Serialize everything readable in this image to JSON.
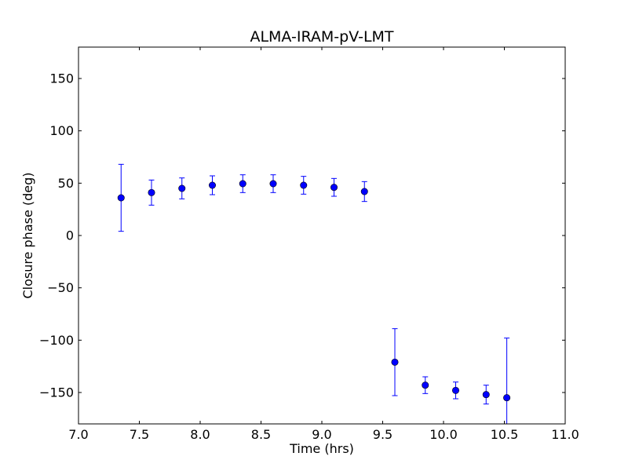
{
  "chart_data": {
    "type": "scatter",
    "title": "ALMA-IRAM-pV-LMT",
    "xlabel": "Time (hrs)",
    "ylabel": "Closure phase (deg)",
    "xlim": [
      7.0,
      11.0
    ],
    "ylim": [
      -180,
      180
    ],
    "xticks": [
      7.0,
      7.5,
      8.0,
      8.5,
      9.0,
      9.5,
      10.0,
      10.5,
      11.0
    ],
    "xtick_labels": [
      "7.0",
      "7.5",
      "8.0",
      "8.5",
      "9.0",
      "9.5",
      "10.0",
      "10.5",
      "11.0"
    ],
    "yticks": [
      -150,
      -100,
      -50,
      0,
      50,
      100,
      150
    ],
    "ytick_labels": [
      "−150",
      "−100",
      "−50",
      "0",
      "50",
      "100",
      "150"
    ],
    "grid": false,
    "legend": "none",
    "series": [
      {
        "color": "#0000ff",
        "marker": "circle",
        "x": [
          7.35,
          7.6,
          7.85,
          8.1,
          8.35,
          8.6,
          8.85,
          9.1,
          9.35,
          9.6,
          9.85,
          10.1,
          10.35,
          10.52
        ],
        "y": [
          36,
          41,
          45,
          48,
          49.5,
          49.5,
          48,
          46,
          42,
          -121,
          -143,
          -148,
          -152,
          -155
        ],
        "yerr": [
          32,
          12,
          10,
          9,
          8.5,
          8.5,
          8.5,
          8.5,
          9.5,
          32,
          8,
          8,
          9,
          57
        ]
      }
    ]
  }
}
